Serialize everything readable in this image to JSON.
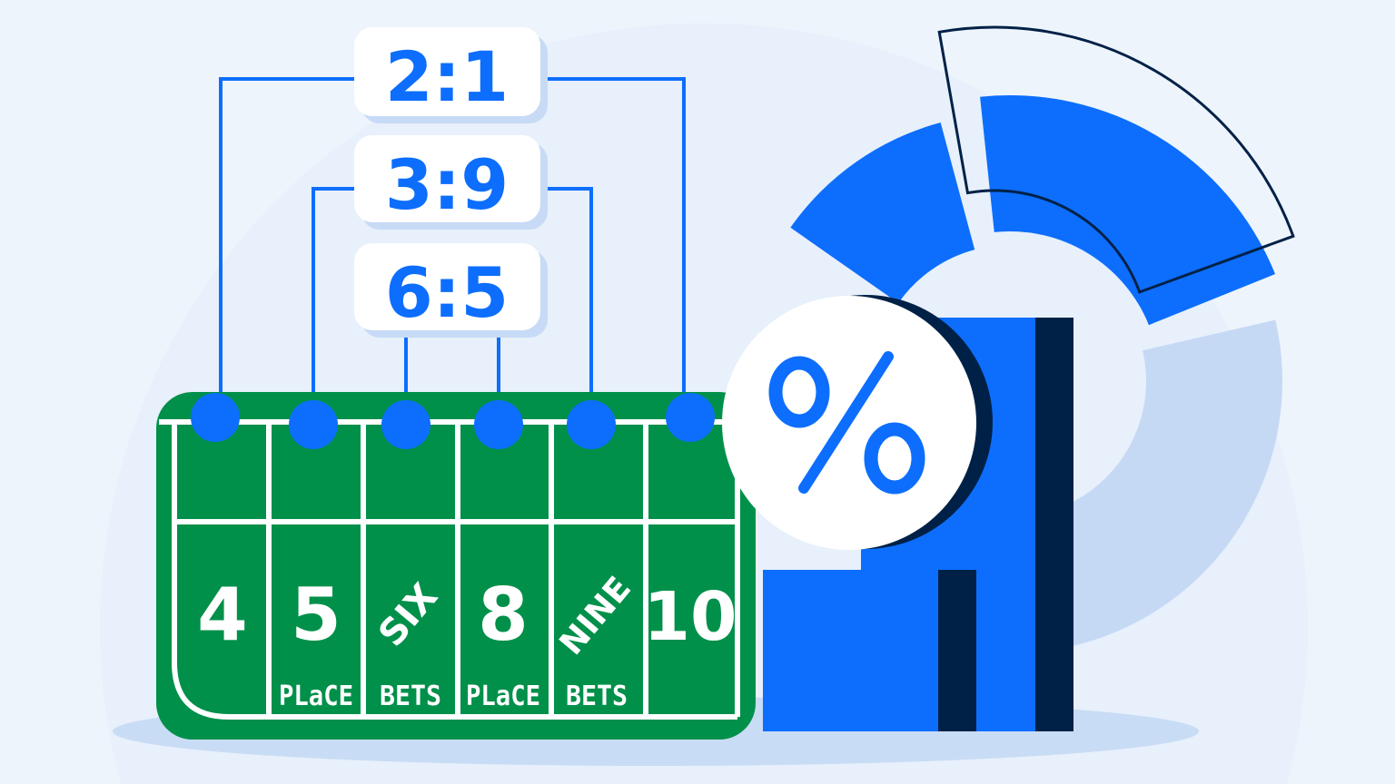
{
  "colors": {
    "background": "#eef4fc",
    "accent_blue": "#0d6efd",
    "table_green": "#00904a",
    "navy": "#002147",
    "light_blue": "#c5d9f5"
  },
  "ratios": [
    "2:1",
    "3:9",
    "6:5"
  ],
  "table": {
    "numbers": [
      "4",
      "5",
      "SIX",
      "8",
      "NINE",
      "10"
    ],
    "labels": [
      "",
      "PLaCE",
      "BETS",
      "PLaCE",
      "BETS",
      ""
    ]
  },
  "percent_symbol": "%",
  "icons": [
    "pie-chart-icon",
    "bar-chart-icon",
    "percent-badge-icon"
  ]
}
